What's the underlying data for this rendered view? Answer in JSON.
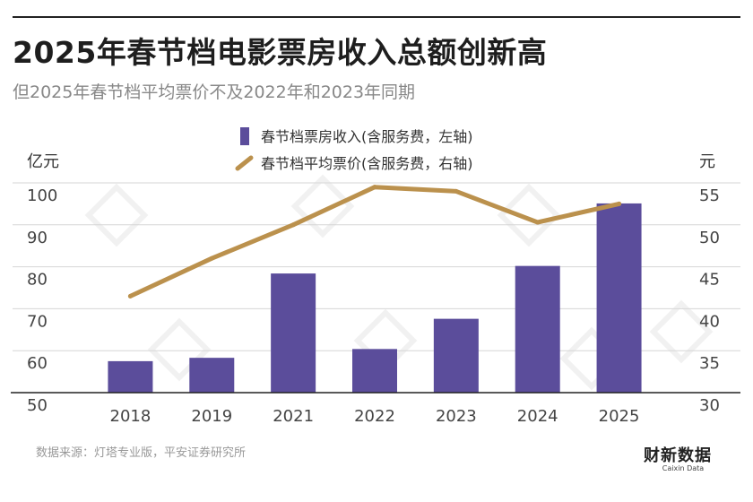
{
  "header": {
    "title": "2025年春节档电影票房收入总额创新高",
    "subtitle": "但2025年春节档平均票价不及2022年和2023年同期"
  },
  "footer": {
    "source": "数据来源：灯塔专业版，平安证券研究所",
    "logo_text": "财新数据",
    "logo_subtext": "Caixin Data"
  },
  "chart_data": {
    "type": "bar",
    "categories": [
      "2018",
      "2019",
      "2021",
      "2022",
      "2023",
      "2024",
      "2025"
    ],
    "series": [
      {
        "name": "春节档票房收入(含服务费，左轴)",
        "type": "bar",
        "axis": "left",
        "color": "#5b4d9b",
        "values": [
          57.5,
          58.3,
          78.4,
          60.4,
          67.6,
          80.2,
          95.1
        ]
      },
      {
        "name": "春节档平均票价(含服务费，右轴)",
        "type": "line",
        "axis": "right",
        "color": "#bb914d",
        "values": [
          41.5,
          46.0,
          50.0,
          54.5,
          54.0,
          50.3,
          52.5
        ]
      }
    ],
    "y_left": {
      "label": "亿元",
      "ylim": [
        50,
        100
      ],
      "ticks": [
        50,
        60,
        70,
        80,
        90,
        100
      ]
    },
    "y_right": {
      "label": "元",
      "ylim": [
        30,
        55
      ],
      "ticks": [
        30,
        35,
        40,
        45,
        50,
        55
      ]
    },
    "grid": true,
    "legend_position": "top-center"
  }
}
